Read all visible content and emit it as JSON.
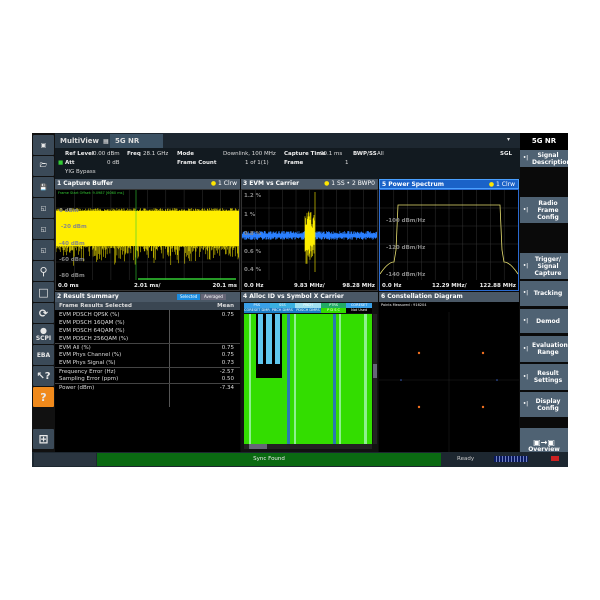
{
  "topbar": {
    "multiview": "MultiView",
    "tab": "5G NR",
    "mode_title": "5G NR"
  },
  "info": {
    "ref_level_label": "Ref Level",
    "ref_level": "0.00 dBm",
    "freq_label": "Freq",
    "freq": "28.1 GHz",
    "mode_label": "Mode",
    "mode": "Downlink, 100 MHz",
    "capture_time_label": "Capture Time",
    "capture_time": "20.1 ms",
    "bwp_label": "BWP/SS",
    "bwp": "All",
    "sgl": "SGL",
    "att_label": "Att",
    "att": "0 dB",
    "frame_count_label": "Frame Count",
    "frame_count": "1 of 1(1)",
    "frame_label": "Frame",
    "frame": "1",
    "yig": "YIG Bypass"
  },
  "panels": {
    "capture": {
      "title": "1 Capture Buffer",
      "trace": "1 Clrw",
      "y_ticks": [
        "0 dBm",
        "-20 dBm",
        "-40 dBm",
        "-60 dBm",
        "-80 dBm"
      ],
      "x_start": "0.0 ms",
      "x_div": "2.01 ms/",
      "x_end": "20.1 ms",
      "note": "Frame Start Offset: 9.0987 [6060 ms]"
    },
    "evm": {
      "title": "3 EVM vs Carrier",
      "trace": "1 SS • 2 BWP0",
      "y_ticks": [
        "1.2 %",
        "1 %",
        "0.8 %",
        "0.6 %",
        "0.4 %"
      ],
      "x_start": "0.0 Hz",
      "x_div": "9.83 MHz/",
      "x_end": "98.28 MHz"
    },
    "spectrum": {
      "title": "5 Power Spectrum",
      "trace": "1 Clrw",
      "y_ticks": [
        "-100 dBm/Hz",
        "-120 dBm/Hz",
        "-140 dBm/Hz"
      ],
      "x_start": "0.0 Hz",
      "x_div": "12.29 MHz/",
      "x_end": "122.88 MHz"
    },
    "summary": {
      "title": "2 Result Summary",
      "selected": "Selected",
      "averaged": "Averaged",
      "col1": "Frame Results Selected",
      "col2": "Mean",
      "rows": [
        [
          "EVM PDSCH QPSK (%)",
          "0.75"
        ],
        [
          "EVM PDSCH 16QAM (%)",
          ""
        ],
        [
          "EVM PDSCH 64QAM (%)",
          ""
        ],
        [
          "EVM PDSCH 256QAM (%)",
          ""
        ],
        [
          "EVM All (%)",
          "0.75"
        ],
        [
          "EVM Phys Channel (%)",
          "0.75"
        ],
        [
          "EVM Phys Signal (%)",
          "0.73"
        ],
        [
          "Frequency Error (Hz)",
          "-2.57"
        ],
        [
          "Sampling Error (ppm)",
          "0.50"
        ],
        [
          "Power (dBm)",
          "-7.34"
        ]
      ]
    },
    "alloc": {
      "title": "4 Alloc ID vs Symbol X Carrier",
      "legend_top": [
        "PSS",
        "SSS",
        "PBCH",
        "PTRS",
        "CORESET"
      ],
      "legend_bottom": [
        "CORESET DMRS",
        "PBCH DMRS",
        "PDSCH DMRS",
        "P D S C",
        "Not Used"
      ]
    },
    "constellation": {
      "title": "6 Constellation Diagram",
      "points": "Points Measured : 916204"
    }
  },
  "softkeys": [
    "Signal Description",
    "Radio Frame Config",
    "Trigger/ Signal Capture",
    "Tracking",
    "Demod",
    "Evaluation Range",
    "Result Settings",
    "Display Config",
    "Overview"
  ],
  "toolbar": [
    "camera-icon",
    "folder-icon",
    "save-icon",
    "zoom-1-icon",
    "zoom-2-icon",
    "zoom-3-icon",
    "magnifier-icon",
    "fullscreen-icon",
    "refresh-icon",
    "scpi-icon",
    "eba-icon",
    "help-pointer-icon",
    "help-icon",
    "windows-icon"
  ],
  "toolbar_labels": {
    "scpi": "SCPI",
    "eba": "EBA"
  },
  "status": {
    "sync": "Sync Found",
    "ready": "Ready"
  },
  "colors": {
    "trace_yellow": "#ffee00",
    "evm_blue": "#2a7fff",
    "alloc_green": "#33dd00",
    "sync_green": "#0a6a12",
    "help_orange": "#f08a1c",
    "softkey": "#4f6273"
  }
}
